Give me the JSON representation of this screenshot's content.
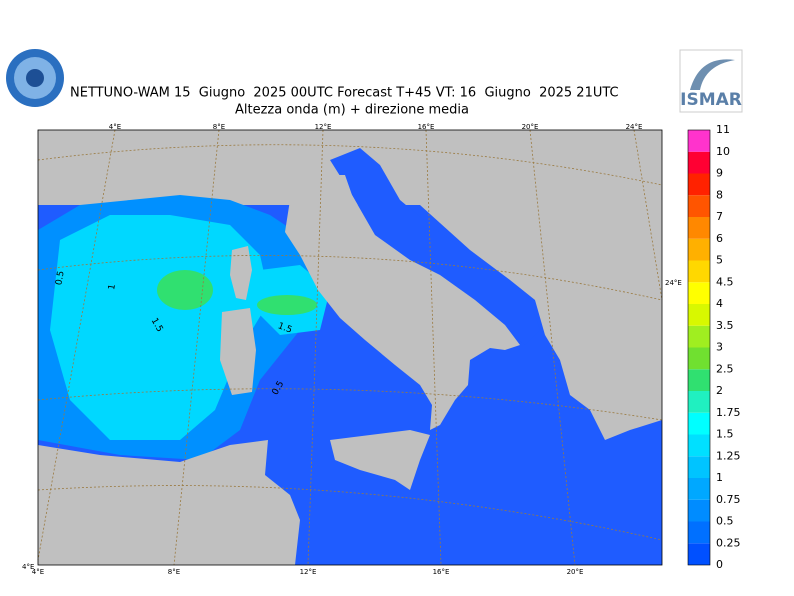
{
  "header": {
    "title": "NETTUNO-WAM 15  Giugno  2025 00UTC Forecast T+45 VT: 16  Giugno  2025 21UTC",
    "subtitle": "Altezza onda (m) + direzione media",
    "logo_right": "ISMAR"
  },
  "colorbar": {
    "levels": [
      0,
      0.25,
      0.5,
      0.75,
      1,
      1.25,
      1.5,
      1.75,
      2,
      2.5,
      3,
      3.5,
      4,
      4.5,
      5,
      6,
      7,
      8,
      9,
      10,
      11
    ],
    "colors": [
      "#0050ff",
      "#0070ff",
      "#008cff",
      "#00a8ff",
      "#00c4ff",
      "#00e0ff",
      "#00ffff",
      "#20f0c0",
      "#30e070",
      "#70e030",
      "#a0ee20",
      "#d8f800",
      "#ffff00",
      "#ffd800",
      "#ffb000",
      "#ff8800",
      "#ff5500",
      "#ff2200",
      "#ff0033",
      "#ff33cc"
    ]
  },
  "map": {
    "top_labels": [
      "4°E",
      "8°E",
      "12°E",
      "16°E",
      "20°E",
      "24°E"
    ],
    "bottom_labels": [
      "4°E",
      "8°E",
      "12°E",
      "16°E",
      "20°E"
    ],
    "right_labels": [
      "24°E"
    ],
    "corner_label": "4°E",
    "contour_labels": [
      0.5,
      1,
      1.5,
      1.5,
      0.5
    ]
  }
}
